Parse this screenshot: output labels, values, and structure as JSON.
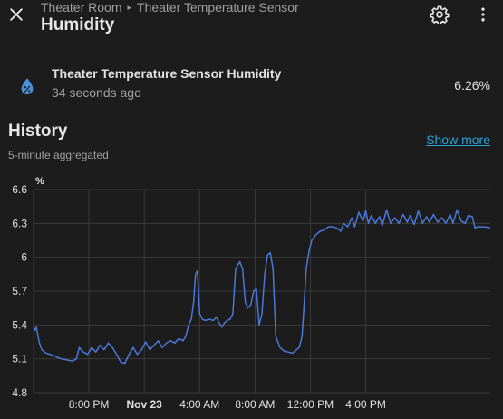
{
  "header": {
    "breadcrumb": [
      "Theater Room",
      "Theater Temperature Sensor"
    ],
    "breadcrumb_separator": "▸",
    "title": "Humidity"
  },
  "entity": {
    "icon": "water-percent-icon",
    "name": "Theater Temperature Sensor Humidity",
    "last_changed": "34 seconds ago",
    "state": "6.26%"
  },
  "history": {
    "title": "History",
    "subtitle": "5-minute aggregated",
    "show_more": "Show more"
  },
  "colors": {
    "background": "#1c1c1c",
    "line": "#4a78d9",
    "grid": "#3a3a3a",
    "link": "#2aa3d6"
  },
  "chart_data": {
    "type": "line",
    "ylabel": "%",
    "ylim": [
      4.8,
      6.6
    ],
    "yticks": [
      "6.6",
      "6.3",
      "6",
      "5.7",
      "5.4",
      "5.1",
      "4.8"
    ],
    "xlim": [
      0,
      16.5
    ],
    "xticks": [
      {
        "label": "8:00 PM",
        "x": 2,
        "bold": false
      },
      {
        "label": "Nov 23",
        "x": 4,
        "bold": true
      },
      {
        "label": "4:00 AM",
        "x": 6,
        "bold": false
      },
      {
        "label": "8:00 AM",
        "x": 8,
        "bold": false
      },
      {
        "label": "12:00 PM",
        "x": 10,
        "bold": false
      },
      {
        "label": "4:00 PM",
        "x": 12,
        "bold": false
      }
    ],
    "grid": true,
    "series": [
      {
        "values": [
          [
            0.0,
            5.38
          ],
          [
            0.05,
            5.35
          ],
          [
            0.1,
            5.38
          ],
          [
            0.2,
            5.25
          ],
          [
            0.3,
            5.18
          ],
          [
            0.45,
            5.15
          ],
          [
            0.6,
            5.14
          ],
          [
            0.8,
            5.12
          ],
          [
            1.0,
            5.1
          ],
          [
            1.2,
            5.09
          ],
          [
            1.4,
            5.08
          ],
          [
            1.55,
            5.1
          ],
          [
            1.65,
            5.2
          ],
          [
            1.8,
            5.16
          ],
          [
            1.95,
            5.14
          ],
          [
            2.1,
            5.2
          ],
          [
            2.25,
            5.16
          ],
          [
            2.4,
            5.22
          ],
          [
            2.55,
            5.18
          ],
          [
            2.7,
            5.24
          ],
          [
            2.85,
            5.2
          ],
          [
            3.0,
            5.14
          ],
          [
            3.15,
            5.07
          ],
          [
            3.3,
            5.06
          ],
          [
            3.45,
            5.14
          ],
          [
            3.6,
            5.2
          ],
          [
            3.75,
            5.14
          ],
          [
            3.9,
            5.18
          ],
          [
            4.05,
            5.25
          ],
          [
            4.2,
            5.18
          ],
          [
            4.35,
            5.22
          ],
          [
            4.5,
            5.26
          ],
          [
            4.65,
            5.2
          ],
          [
            4.8,
            5.24
          ],
          [
            4.95,
            5.26
          ],
          [
            5.1,
            5.24
          ],
          [
            5.25,
            5.28
          ],
          [
            5.4,
            5.26
          ],
          [
            5.5,
            5.3
          ],
          [
            5.6,
            5.4
          ],
          [
            5.7,
            5.45
          ],
          [
            5.78,
            5.6
          ],
          [
            5.85,
            5.85
          ],
          [
            5.92,
            5.88
          ],
          [
            6.0,
            5.5
          ],
          [
            6.1,
            5.45
          ],
          [
            6.2,
            5.44
          ],
          [
            6.35,
            5.45
          ],
          [
            6.5,
            5.44
          ],
          [
            6.6,
            5.47
          ],
          [
            6.7,
            5.42
          ],
          [
            6.8,
            5.38
          ],
          [
            6.9,
            5.42
          ],
          [
            7.0,
            5.44
          ],
          [
            7.1,
            5.45
          ],
          [
            7.2,
            5.5
          ],
          [
            7.3,
            5.9
          ],
          [
            7.45,
            5.96
          ],
          [
            7.55,
            5.9
          ],
          [
            7.65,
            5.6
          ],
          [
            7.75,
            5.55
          ],
          [
            7.85,
            5.58
          ],
          [
            7.95,
            5.7
          ],
          [
            8.05,
            5.72
          ],
          [
            8.15,
            5.4
          ],
          [
            8.25,
            5.5
          ],
          [
            8.35,
            5.85
          ],
          [
            8.45,
            6.02
          ],
          [
            8.55,
            6.04
          ],
          [
            8.65,
            5.9
          ],
          [
            8.75,
            5.3
          ],
          [
            8.9,
            5.2
          ],
          [
            9.05,
            5.17
          ],
          [
            9.2,
            5.16
          ],
          [
            9.35,
            5.15
          ],
          [
            9.5,
            5.18
          ],
          [
            9.6,
            5.2
          ],
          [
            9.7,
            5.3
          ],
          [
            9.78,
            5.6
          ],
          [
            9.85,
            5.9
          ],
          [
            9.95,
            6.05
          ],
          [
            10.05,
            6.15
          ],
          [
            10.2,
            6.2
          ],
          [
            10.35,
            6.23
          ],
          [
            10.5,
            6.24
          ],
          [
            10.65,
            6.27
          ],
          [
            10.8,
            6.27
          ],
          [
            10.95,
            6.26
          ],
          [
            11.1,
            6.23
          ],
          [
            11.2,
            6.3
          ],
          [
            11.35,
            6.27
          ],
          [
            11.5,
            6.35
          ],
          [
            11.6,
            6.27
          ],
          [
            11.75,
            6.4
          ],
          [
            11.9,
            6.32
          ],
          [
            12.0,
            6.41
          ],
          [
            12.1,
            6.3
          ],
          [
            12.2,
            6.37
          ],
          [
            12.35,
            6.3
          ],
          [
            12.5,
            6.36
          ],
          [
            12.6,
            6.28
          ],
          [
            12.75,
            6.42
          ],
          [
            12.9,
            6.3
          ],
          [
            13.05,
            6.35
          ],
          [
            13.2,
            6.3
          ],
          [
            13.35,
            6.38
          ],
          [
            13.5,
            6.31
          ],
          [
            13.6,
            6.37
          ],
          [
            13.75,
            6.29
          ],
          [
            13.9,
            6.41
          ],
          [
            14.05,
            6.3
          ],
          [
            14.2,
            6.36
          ],
          [
            14.3,
            6.31
          ],
          [
            14.45,
            6.38
          ],
          [
            14.6,
            6.31
          ],
          [
            14.75,
            6.35
          ],
          [
            14.9,
            6.3
          ],
          [
            15.05,
            6.38
          ],
          [
            15.15,
            6.3
          ],
          [
            15.3,
            6.42
          ],
          [
            15.45,
            6.32
          ],
          [
            15.6,
            6.3
          ],
          [
            15.7,
            6.37
          ],
          [
            15.85,
            6.36
          ],
          [
            15.95,
            6.26
          ],
          [
            16.05,
            6.27
          ],
          [
            16.3,
            6.27
          ],
          [
            16.5,
            6.26
          ]
        ]
      }
    ]
  }
}
